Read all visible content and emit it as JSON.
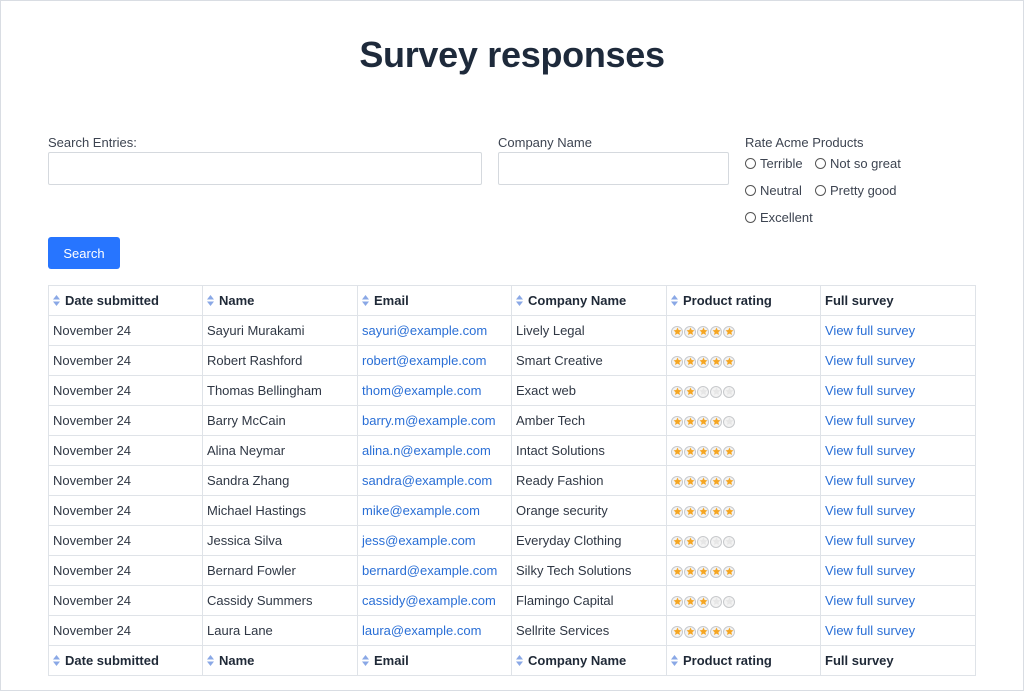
{
  "page": {
    "title": "Survey responses"
  },
  "search": {
    "label": "Search Entries:",
    "value": "",
    "button_label": "Search"
  },
  "company_filter": {
    "label": "Company Name",
    "value": ""
  },
  "rating_filter": {
    "label": "Rate Acme Products",
    "options": [
      "Terrible",
      "Not so great",
      "Neutral",
      "Pretty good",
      "Excellent"
    ]
  },
  "table": {
    "columns": [
      "Date submitted",
      "Name",
      "Email",
      "Company Name",
      "Product rating",
      "Full survey"
    ],
    "rows": [
      {
        "date": "November 24",
        "name": "Sayuri Murakami",
        "email": "sayuri@example.com",
        "company": "Lively Legal",
        "rating": 5,
        "link": "View full survey"
      },
      {
        "date": "November 24",
        "name": "Robert Rashford",
        "email": "robert@example.com",
        "company": "Smart Creative",
        "rating": 5,
        "link": "View full survey"
      },
      {
        "date": "November 24",
        "name": "Thomas Bellingham",
        "email": "thom@example.com",
        "company": "Exact web",
        "rating": 2,
        "link": "View full survey"
      },
      {
        "date": "November 24",
        "name": "Barry McCain",
        "email": "barry.m@example.com",
        "company": "Amber Tech",
        "rating": 4,
        "link": "View full survey"
      },
      {
        "date": "November 24",
        "name": "Alina Neymar",
        "email": "alina.n@example.com",
        "company": "Intact Solutions",
        "rating": 5,
        "link": "View full survey"
      },
      {
        "date": "November 24",
        "name": "Sandra Zhang",
        "email": "sandra@example.com",
        "company": "Ready Fashion",
        "rating": 5,
        "link": "View full survey"
      },
      {
        "date": "November 24",
        "name": "Michael Hastings",
        "email": "mike@example.com",
        "company": "Orange security",
        "rating": 5,
        "link": "View full survey"
      },
      {
        "date": "November 24",
        "name": "Jessica Silva",
        "email": "jess@example.com",
        "company": "Everyday Clothing",
        "rating": 2,
        "link": "View full survey"
      },
      {
        "date": "November 24",
        "name": "Bernard Fowler",
        "email": "bernard@example.com",
        "company": "Silky Tech Solutions",
        "rating": 5,
        "link": "View full survey"
      },
      {
        "date": "November 24",
        "name": "Cassidy Summers",
        "email": "cassidy@example.com",
        "company": "Flamingo Capital",
        "rating": 3,
        "link": "View full survey"
      },
      {
        "date": "November 24",
        "name": "Laura Lane",
        "email": "laura@example.com",
        "company": "Sellrite Services",
        "rating": 5,
        "link": "View full survey"
      }
    ],
    "rating_max": 5
  },
  "colors": {
    "accent": "#2775ff",
    "link": "#2a6fd6",
    "star_filled": "#f5a623",
    "star_empty": "#e6e6e6",
    "sort_icon": "#8aa8e6"
  },
  "icons": {
    "sort": "sort-icon",
    "star": "star-icon",
    "radio": "radio-icon"
  }
}
